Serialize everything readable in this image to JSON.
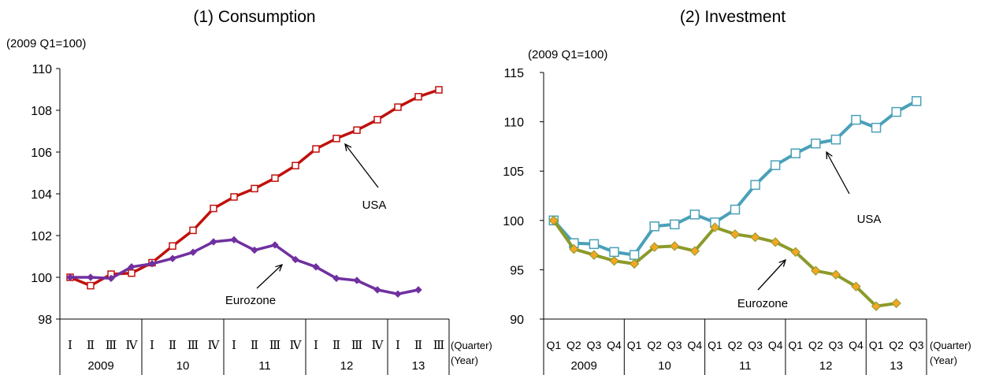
{
  "chart_data": [
    {
      "type": "line",
      "title": "(1) Consumption",
      "unit_label": "(2009 Q1=100)",
      "ylim": [
        98,
        110
      ],
      "yticks": [
        "98",
        "100",
        "102",
        "104",
        "106",
        "108",
        "110"
      ],
      "quarter_labels": [
        "Ⅰ",
        "Ⅱ",
        "Ⅲ",
        "Ⅳ",
        "Ⅰ",
        "Ⅱ",
        "Ⅲ",
        "Ⅳ",
        "Ⅰ",
        "Ⅱ",
        "Ⅲ",
        "Ⅳ",
        "Ⅰ",
        "Ⅱ",
        "Ⅲ",
        "Ⅳ",
        "Ⅰ",
        "Ⅱ",
        "Ⅲ"
      ],
      "years": [
        "2009",
        "10",
        "11",
        "12",
        "13"
      ],
      "x_side_label": "(Quarter)",
      "year_side_label": "(Year)",
      "series": [
        {
          "name": "USA",
          "color": "#c0100c",
          "marker": "open-square",
          "values": [
            100.0,
            99.6,
            100.15,
            100.2,
            100.7,
            101.5,
            102.25,
            103.3,
            103.85,
            104.25,
            104.75,
            105.35,
            106.15,
            106.65,
            107.05,
            107.55,
            108.15,
            108.65,
            108.98
          ]
        },
        {
          "name": "Eurozone",
          "color": "#7030a0",
          "marker": "diamond",
          "values": [
            100.0,
            100.0,
            99.95,
            100.5,
            100.65,
            100.9,
            101.2,
            101.7,
            101.8,
            101.3,
            101.55,
            100.85,
            100.5,
            99.95,
            99.85,
            99.4,
            99.2,
            99.4
          ]
        }
      ],
      "annotations": [
        "USA",
        "Eurozone"
      ]
    },
    {
      "type": "line",
      "title": "(2) Investment",
      "unit_label": "(2009 Q1=100)",
      "ylim": [
        90,
        115
      ],
      "yticks": [
        "90",
        "95",
        "100",
        "105",
        "110",
        "115"
      ],
      "quarter_labels": [
        "Q1",
        "Q2",
        "Q3",
        "Q4",
        "Q1",
        "Q2",
        "Q3",
        "Q4",
        "Q1",
        "Q2",
        "Q3",
        "Q4",
        "Q1",
        "Q2",
        "Q3",
        "Q4",
        "Q1",
        "Q2",
        "Q3"
      ],
      "years": [
        "2009",
        "10",
        "11",
        "12",
        "13"
      ],
      "x_side_label": "(Quarter)",
      "year_side_label": "(Year)",
      "series": [
        {
          "name": "USA",
          "color": "#4aa0b8",
          "marker": "open-square",
          "values": [
            100.0,
            97.7,
            97.6,
            96.8,
            96.5,
            99.4,
            99.6,
            100.6,
            99.8,
            101.1,
            103.6,
            105.6,
            106.8,
            107.8,
            108.2,
            110.2,
            109.4,
            111.0,
            112.1
          ]
        },
        {
          "name": "Eurozone",
          "color": "#8c9a2a",
          "marker": "diamond",
          "marker_fill": "#f5a623",
          "values": [
            100.0,
            97.1,
            96.5,
            95.9,
            95.6,
            97.3,
            97.4,
            96.9,
            99.3,
            98.6,
            98.3,
            97.8,
            96.8,
            94.9,
            94.5,
            93.3,
            91.3,
            91.6
          ]
        }
      ],
      "annotations": [
        "USA",
        "Eurozone"
      ]
    }
  ]
}
